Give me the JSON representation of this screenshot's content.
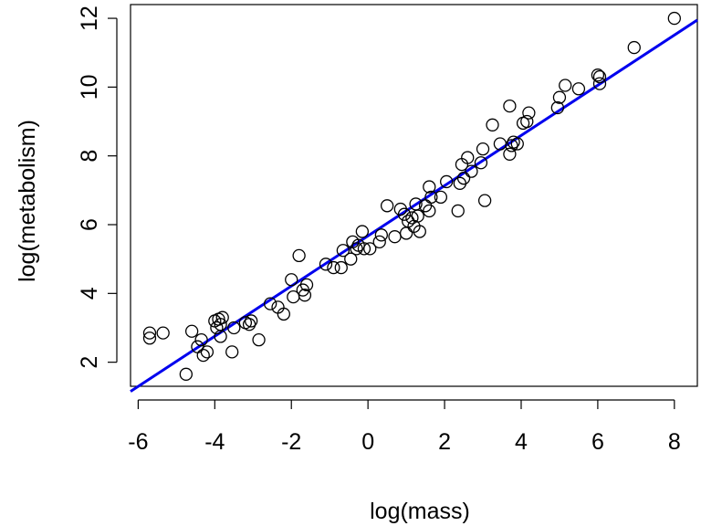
{
  "chart_data": {
    "type": "scatter",
    "title": "",
    "xlabel": "log(mass)",
    "ylabel": "log(metabolism)",
    "xlim": [
      -6.2,
      8.6
    ],
    "ylim": [
      1.3,
      12.4
    ],
    "xticks": [
      -6,
      -4,
      -2,
      0,
      2,
      4,
      6,
      8
    ],
    "xtick_labels": [
      "-6",
      "-4",
      "-2",
      "0",
      "2",
      "4",
      "6",
      "8"
    ],
    "yticks": [
      2,
      4,
      6,
      8,
      10,
      12
    ],
    "ytick_labels": [
      "2",
      "4",
      "6",
      "8",
      "10",
      "12"
    ],
    "grid": false,
    "fit_line": {
      "color": "#0000ee",
      "x": [
        -6.2,
        8.6
      ],
      "y": [
        1.15,
        11.95
      ]
    },
    "points": [
      [
        -5.7,
        2.7
      ],
      [
        -5.7,
        2.85
      ],
      [
        -5.35,
        2.85
      ],
      [
        -4.75,
        1.65
      ],
      [
        -4.6,
        2.9
      ],
      [
        -4.45,
        2.45
      ],
      [
        -4.35,
        2.65
      ],
      [
        -4.3,
        2.2
      ],
      [
        -4.2,
        2.3
      ],
      [
        -4.0,
        3.2
      ],
      [
        -3.95,
        3.0
      ],
      [
        -3.9,
        3.25
      ],
      [
        -3.85,
        2.75
      ],
      [
        -3.85,
        3.1
      ],
      [
        -3.8,
        3.3
      ],
      [
        -3.55,
        2.3
      ],
      [
        -3.5,
        3.0
      ],
      [
        -3.2,
        3.15
      ],
      [
        -3.1,
        3.1
      ],
      [
        -3.05,
        3.2
      ],
      [
        -2.85,
        2.65
      ],
      [
        -2.55,
        3.7
      ],
      [
        -2.35,
        3.6
      ],
      [
        -2.2,
        3.4
      ],
      [
        -2.0,
        4.4
      ],
      [
        -1.95,
        3.9
      ],
      [
        -1.8,
        5.1
      ],
      [
        -1.7,
        4.1
      ],
      [
        -1.65,
        3.95
      ],
      [
        -1.6,
        4.25
      ],
      [
        -1.1,
        4.85
      ],
      [
        -0.9,
        4.75
      ],
      [
        -0.7,
        4.75
      ],
      [
        -0.65,
        5.25
      ],
      [
        -0.45,
        5.0
      ],
      [
        -0.4,
        5.5
      ],
      [
        -0.3,
        5.3
      ],
      [
        -0.25,
        5.4
      ],
      [
        -0.15,
        5.8
      ],
      [
        -0.1,
        5.3
      ],
      [
        0.05,
        5.3
      ],
      [
        0.3,
        5.5
      ],
      [
        0.35,
        5.7
      ],
      [
        0.5,
        6.55
      ],
      [
        0.7,
        5.65
      ],
      [
        0.85,
        6.45
      ],
      [
        0.95,
        6.3
      ],
      [
        1.0,
        5.75
      ],
      [
        1.05,
        6.1
      ],
      [
        1.15,
        6.2
      ],
      [
        1.2,
        5.95
      ],
      [
        1.25,
        6.6
      ],
      [
        1.3,
        6.25
      ],
      [
        1.35,
        5.8
      ],
      [
        1.5,
        6.55
      ],
      [
        1.6,
        6.4
      ],
      [
        1.6,
        7.1
      ],
      [
        1.65,
        6.8
      ],
      [
        1.9,
        6.8
      ],
      [
        2.05,
        7.25
      ],
      [
        2.35,
        6.4
      ],
      [
        2.4,
        7.2
      ],
      [
        2.45,
        7.75
      ],
      [
        2.5,
        7.35
      ],
      [
        2.6,
        7.95
      ],
      [
        2.7,
        7.55
      ],
      [
        2.95,
        7.8
      ],
      [
        3.0,
        8.2
      ],
      [
        3.05,
        6.7
      ],
      [
        3.25,
        8.9
      ],
      [
        3.45,
        8.35
      ],
      [
        3.7,
        8.05
      ],
      [
        3.7,
        9.45
      ],
      [
        3.75,
        8.3
      ],
      [
        3.8,
        8.4
      ],
      [
        3.9,
        8.35
      ],
      [
        4.05,
        8.95
      ],
      [
        4.15,
        9.0
      ],
      [
        4.2,
        9.25
      ],
      [
        4.95,
        9.4
      ],
      [
        5.0,
        9.7
      ],
      [
        5.15,
        10.05
      ],
      [
        5.5,
        9.95
      ],
      [
        6.0,
        10.35
      ],
      [
        6.05,
        10.3
      ],
      [
        6.05,
        10.1
      ],
      [
        6.95,
        11.15
      ],
      [
        8.0,
        12.0
      ]
    ]
  }
}
